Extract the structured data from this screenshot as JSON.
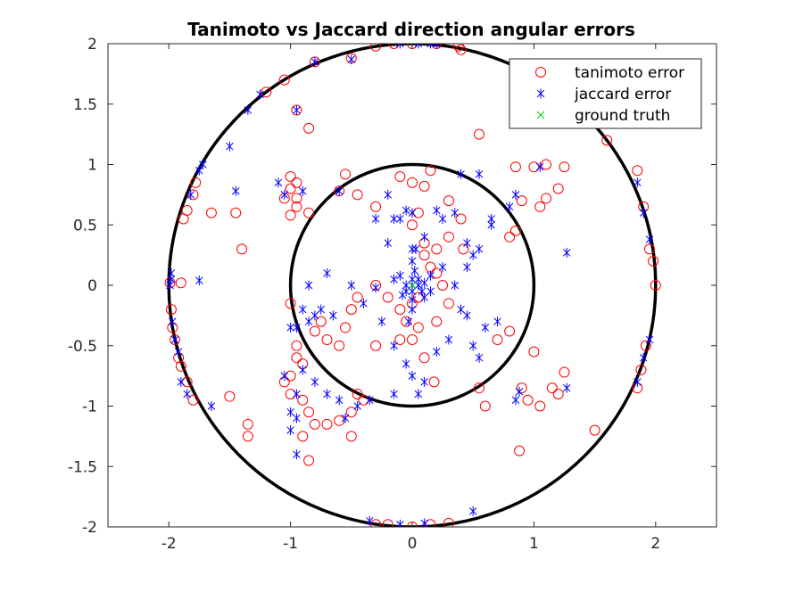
{
  "chart_data": {
    "type": "scatter",
    "title": "Tanimoto vs Jaccard direction angular errors",
    "xlabel": "",
    "ylabel": "",
    "xlim": [
      -2.5,
      2.5
    ],
    "ylim": [
      -2,
      2
    ],
    "x_ticks": [
      "-2",
      "-1",
      "0",
      "1",
      "2"
    ],
    "y_ticks": [
      "2",
      "1.5",
      "1",
      "0.5",
      "0",
      "-0.5",
      "-1",
      "-1.5",
      "-2"
    ],
    "grid": false,
    "legend_position": "top-right",
    "reference_circles": [
      {
        "cx": 0,
        "cy": 0,
        "r": 1,
        "color": "#000000"
      },
      {
        "cx": 0,
        "cy": 0,
        "r": 2,
        "color": "#000000"
      }
    ],
    "series": [
      {
        "name": "tanimoto error",
        "marker": "circle",
        "color": "#ff0000",
        "points": [
          [
            -1.99,
            0.02
          ],
          [
            -1.98,
            -0.2
          ],
          [
            -1.97,
            -0.35
          ],
          [
            -1.95,
            -0.45
          ],
          [
            -1.92,
            -0.6
          ],
          [
            -1.9,
            -0.67
          ],
          [
            -1.85,
            -0.8
          ],
          [
            -1.8,
            -0.95
          ],
          [
            -1.88,
            0.55
          ],
          [
            -1.85,
            0.62
          ],
          [
            -1.8,
            0.75
          ],
          [
            -1.78,
            0.85
          ],
          [
            -1.9,
            0.02
          ],
          [
            -1.65,
            0.6
          ],
          [
            -1.45,
            0.6
          ],
          [
            -1.4,
            0.3
          ],
          [
            -1.2,
            1.6
          ],
          [
            -1.05,
            1.7
          ],
          [
            -0.95,
            1.45
          ],
          [
            -0.85,
            1.3
          ],
          [
            -0.8,
            1.85
          ],
          [
            -0.5,
            1.88
          ],
          [
            -0.3,
            1.98
          ],
          [
            -0.15,
            2.0
          ],
          [
            0.0,
            2.0
          ],
          [
            0.2,
            2.0
          ],
          [
            0.4,
            1.95
          ],
          [
            1.6,
            1.2
          ],
          [
            1.85,
            0.95
          ],
          [
            1.9,
            0.65
          ],
          [
            1.95,
            0.3
          ],
          [
            1.98,
            0.2
          ],
          [
            2.0,
            0.0
          ],
          [
            1.92,
            -0.5
          ],
          [
            1.88,
            -0.7
          ],
          [
            1.85,
            -0.85
          ],
          [
            1.5,
            -1.2
          ],
          [
            0.88,
            -1.37
          ],
          [
            0.55,
            1.25
          ],
          [
            0.38,
            1.98
          ],
          [
            0.0,
            -2.0
          ],
          [
            -0.2,
            -1.98
          ],
          [
            -0.3,
            -1.98
          ],
          [
            0.15,
            -1.98
          ],
          [
            0.3,
            -1.97
          ],
          [
            -1.35,
            -1.15
          ],
          [
            -1.35,
            -1.25
          ],
          [
            -1.5,
            -0.92
          ],
          [
            -1.0,
            0.9
          ],
          [
            -0.95,
            0.85
          ],
          [
            -1.0,
            0.8
          ],
          [
            -0.95,
            0.72
          ],
          [
            -1.05,
            0.72
          ],
          [
            -0.85,
            0.6
          ],
          [
            -0.95,
            0.65
          ],
          [
            -1.0,
            0.58
          ],
          [
            -0.6,
            0.78
          ],
          [
            -0.55,
            0.92
          ],
          [
            -0.45,
            0.75
          ],
          [
            -0.3,
            0.65
          ],
          [
            -0.1,
            0.9
          ],
          [
            0.0,
            0.85
          ],
          [
            0.1,
            0.82
          ],
          [
            0.15,
            0.95
          ],
          [
            0.3,
            0.7
          ],
          [
            0.4,
            0.55
          ],
          [
            0.42,
            0.3
          ],
          [
            0.3,
            0.4
          ],
          [
            0.2,
            0.3
          ],
          [
            0.1,
            0.35
          ],
          [
            0.0,
            0.5
          ],
          [
            0.05,
            0.6
          ],
          [
            0.8,
            0.4
          ],
          [
            0.85,
            0.45
          ],
          [
            0.9,
            0.7
          ],
          [
            1.05,
            0.65
          ],
          [
            1.1,
            0.72
          ],
          [
            1.2,
            0.8
          ],
          [
            1.0,
            0.98
          ],
          [
            1.1,
            1.0
          ],
          [
            1.25,
            0.98
          ],
          [
            0.85,
            0.98
          ],
          [
            0.7,
            -0.45
          ],
          [
            0.8,
            -0.38
          ],
          [
            1.0,
            -0.55
          ],
          [
            1.15,
            -0.85
          ],
          [
            1.2,
            -0.9
          ],
          [
            1.25,
            -0.72
          ],
          [
            0.9,
            -0.85
          ],
          [
            0.95,
            -0.95
          ],
          [
            1.05,
            -1.0
          ],
          [
            0.55,
            -0.85
          ],
          [
            0.6,
            -1.0
          ],
          [
            0.18,
            -0.8
          ],
          [
            0.1,
            -0.6
          ],
          [
            0.0,
            -0.45
          ],
          [
            -0.05,
            -0.3
          ],
          [
            0.0,
            -0.15
          ],
          [
            0.05,
            -0.1
          ],
          [
            -0.1,
            -0.2
          ],
          [
            -0.2,
            -0.1
          ],
          [
            -0.3,
            0.0
          ],
          [
            -0.45,
            -0.1
          ],
          [
            -0.5,
            -0.2
          ],
          [
            -0.55,
            -0.35
          ],
          [
            -0.6,
            -0.5
          ],
          [
            -0.7,
            -0.45
          ],
          [
            -0.75,
            -0.3
          ],
          [
            -0.8,
            -0.38
          ],
          [
            -1.0,
            -0.15
          ],
          [
            -0.95,
            -0.5
          ],
          [
            -0.95,
            -0.6
          ],
          [
            -0.9,
            -0.65
          ],
          [
            -1.0,
            -0.75
          ],
          [
            -1.05,
            -0.8
          ],
          [
            -1.0,
            -0.9
          ],
          [
            -0.9,
            -0.95
          ],
          [
            -0.85,
            -1.05
          ],
          [
            -0.8,
            -1.15
          ],
          [
            -0.9,
            -1.25
          ],
          [
            -0.85,
            -1.45
          ],
          [
            -0.7,
            -1.15
          ],
          [
            -0.6,
            -1.12
          ],
          [
            -0.5,
            -1.25
          ],
          [
            -0.45,
            -0.9
          ],
          [
            -0.5,
            -1.05
          ],
          [
            -0.4,
            -0.95
          ],
          [
            -0.3,
            -0.5
          ],
          [
            0.1,
            0.25
          ],
          [
            0.15,
            0.15
          ],
          [
            0.2,
            0.1
          ],
          [
            0.25,
            0.0
          ],
          [
            0.3,
            -0.15
          ],
          [
            0.2,
            -0.3
          ],
          [
            0.05,
            -0.35
          ],
          [
            -0.1,
            -0.45
          ]
        ]
      },
      {
        "name": "jaccard error",
        "marker": "asterisk",
        "color": "#0000ff",
        "points": [
          [
            -1.99,
            0.0
          ],
          [
            -1.98,
            0.05
          ],
          [
            -1.98,
            0.1
          ],
          [
            -1.97,
            -0.3
          ],
          [
            -1.95,
            -0.45
          ],
          [
            -1.92,
            -0.55
          ],
          [
            -1.85,
            -0.9
          ],
          [
            -1.9,
            -0.8
          ],
          [
            -1.82,
            0.75
          ],
          [
            -1.75,
            0.95
          ],
          [
            -1.72,
            1.0
          ],
          [
            -1.5,
            1.15
          ],
          [
            -1.35,
            1.45
          ],
          [
            -1.25,
            1.58
          ],
          [
            -0.95,
            1.45
          ],
          [
            -0.8,
            1.85
          ],
          [
            -0.5,
            1.87
          ],
          [
            -0.1,
            2.0
          ],
          [
            0.05,
            2.0
          ],
          [
            0.15,
            2.0
          ],
          [
            0.2,
            2.0
          ],
          [
            1.85,
            0.85
          ],
          [
            1.9,
            0.6
          ],
          [
            1.95,
            0.38
          ],
          [
            1.95,
            -0.45
          ],
          [
            1.9,
            -0.6
          ],
          [
            1.85,
            -0.8
          ],
          [
            1.27,
            0.27
          ],
          [
            1.27,
            -0.85
          ],
          [
            0.88,
            -0.88
          ],
          [
            0.85,
            -0.95
          ],
          [
            -1.45,
            0.78
          ],
          [
            -1.65,
            -1.0
          ],
          [
            -1.75,
            0.04
          ],
          [
            -0.35,
            -1.95
          ],
          [
            -0.1,
            -1.98
          ],
          [
            0.1,
            -1.97
          ],
          [
            0.5,
            -1.87
          ],
          [
            -1.1,
            0.85
          ],
          [
            -1.05,
            0.75
          ],
          [
            -0.9,
            0.78
          ],
          [
            -0.6,
            0.78
          ],
          [
            -0.2,
            0.75
          ],
          [
            -0.15,
            0.55
          ],
          [
            -0.05,
            0.62
          ],
          [
            0.0,
            0.6
          ],
          [
            0.1,
            0.4
          ],
          [
            0.0,
            0.3
          ],
          [
            -0.1,
            0.55
          ],
          [
            0.2,
            0.62
          ],
          [
            0.4,
            0.92
          ],
          [
            0.55,
            0.92
          ],
          [
            0.65,
            0.55
          ],
          [
            0.8,
            0.65
          ],
          [
            0.85,
            0.75
          ],
          [
            1.05,
            0.98
          ],
          [
            0.45,
            0.15
          ],
          [
            0.35,
            0.0
          ],
          [
            0.25,
            0.15
          ],
          [
            0.15,
            0.08
          ],
          [
            0.1,
            0.02
          ],
          [
            0.05,
            0.0
          ],
          [
            0.0,
            0.0
          ],
          [
            -0.05,
            0.0
          ],
          [
            0.0,
            0.05
          ],
          [
            0.0,
            -0.05
          ],
          [
            0.05,
            0.05
          ],
          [
            -0.05,
            -0.05
          ],
          [
            0.02,
            0.12
          ],
          [
            0.0,
            0.2
          ],
          [
            0.0,
            -0.12
          ],
          [
            0.0,
            -0.2
          ],
          [
            0.1,
            -0.1
          ],
          [
            -0.1,
            0.08
          ],
          [
            0.08,
            -0.05
          ],
          [
            -0.08,
            -0.08
          ],
          [
            0.15,
            -0.05
          ],
          [
            -0.15,
            0.05
          ],
          [
            0.03,
            0.3
          ],
          [
            -0.03,
            -0.3
          ],
          [
            -0.3,
            -0.02
          ],
          [
            -0.5,
            0.0
          ],
          [
            -0.7,
            0.1
          ],
          [
            -0.85,
            0.0
          ],
          [
            -0.65,
            -0.25
          ],
          [
            -0.75,
            -0.2
          ],
          [
            -0.8,
            -0.25
          ],
          [
            -0.85,
            -0.3
          ],
          [
            -0.95,
            -0.35
          ],
          [
            -1.0,
            -0.35
          ],
          [
            -0.9,
            -0.2
          ],
          [
            -0.4,
            -0.15
          ],
          [
            -0.25,
            -0.3
          ],
          [
            -0.15,
            -0.5
          ],
          [
            -0.05,
            -0.65
          ],
          [
            0.0,
            -0.75
          ],
          [
            0.1,
            -0.8
          ],
          [
            0.05,
            -0.9
          ],
          [
            -0.15,
            -0.9
          ],
          [
            -0.35,
            -0.95
          ],
          [
            -0.45,
            -1.0
          ],
          [
            -0.55,
            -1.1
          ],
          [
            -0.6,
            -0.95
          ],
          [
            -0.7,
            -0.9
          ],
          [
            -0.8,
            -0.8
          ],
          [
            -0.9,
            -0.7
          ],
          [
            -1.05,
            -0.75
          ],
          [
            -0.95,
            -0.9
          ],
          [
            -1.0,
            -1.05
          ],
          [
            -0.95,
            -1.1
          ],
          [
            -1.0,
            -1.2
          ],
          [
            -0.95,
            -1.4
          ],
          [
            0.45,
            -0.25
          ],
          [
            0.5,
            -0.5
          ],
          [
            0.55,
            -0.6
          ],
          [
            0.6,
            -0.35
          ],
          [
            0.7,
            -0.3
          ],
          [
            0.4,
            -0.2
          ],
          [
            0.3,
            -0.45
          ],
          [
            0.2,
            -0.55
          ],
          [
            0.45,
            0.35
          ],
          [
            0.55,
            0.3
          ],
          [
            0.65,
            0.5
          ],
          [
            0.35,
            0.6
          ],
          [
            0.25,
            0.55
          ],
          [
            0.5,
            0.25
          ],
          [
            -0.2,
            0.35
          ],
          [
            -0.3,
            0.55
          ]
        ]
      },
      {
        "name": "ground truth",
        "marker": "x",
        "color": "#00cc00",
        "points": [
          [
            0.0,
            0.0
          ]
        ]
      }
    ]
  }
}
